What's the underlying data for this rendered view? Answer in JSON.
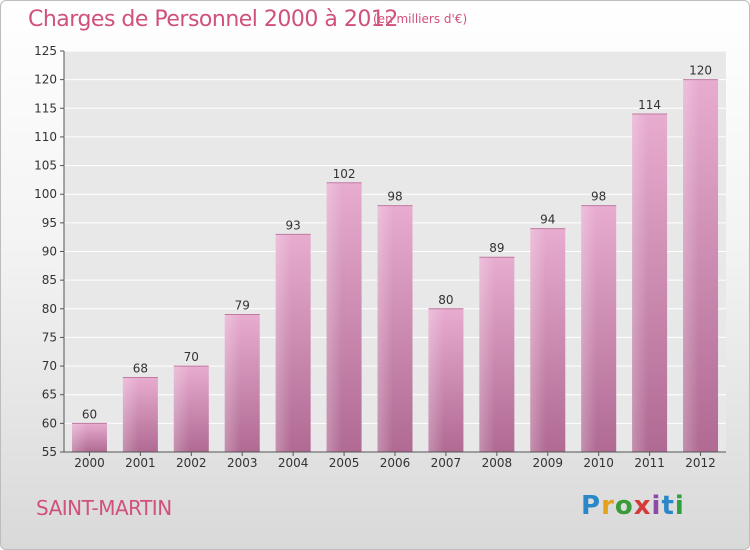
{
  "header": {
    "title": "Charges de Personnel 2000 à 2012",
    "subtitle": "(en milliers d'€)"
  },
  "footer": {
    "commune": "SAINT-MARTIN",
    "brand_letters": [
      "P",
      "r",
      "o",
      "x",
      "i",
      "t",
      "i"
    ]
  },
  "colors": {
    "accent": "#d0507e",
    "bar_light": "#e6a8cc",
    "bar_dark": "#b56e96"
  },
  "chart_data": {
    "type": "bar",
    "categories": [
      "2000",
      "2001",
      "2002",
      "2003",
      "2004",
      "2005",
      "2006",
      "2007",
      "2008",
      "2009",
      "2010",
      "2011",
      "2012"
    ],
    "values": [
      60,
      68,
      70,
      79,
      93,
      102,
      98,
      80,
      89,
      94,
      98,
      114,
      120
    ],
    "data_labels": [
      "60",
      "68",
      "70",
      "79",
      "93",
      "102",
      "98",
      "80",
      "89",
      "94",
      "98",
      "114",
      "120"
    ],
    "ylim": [
      55,
      125
    ],
    "yticks": [
      55,
      60,
      65,
      70,
      75,
      80,
      85,
      90,
      95,
      100,
      105,
      110,
      115,
      120,
      125
    ],
    "title": "Charges de Personnel 2000 à 2012",
    "xlabel": "",
    "ylabel": "",
    "grid": true,
    "legend": "none"
  }
}
